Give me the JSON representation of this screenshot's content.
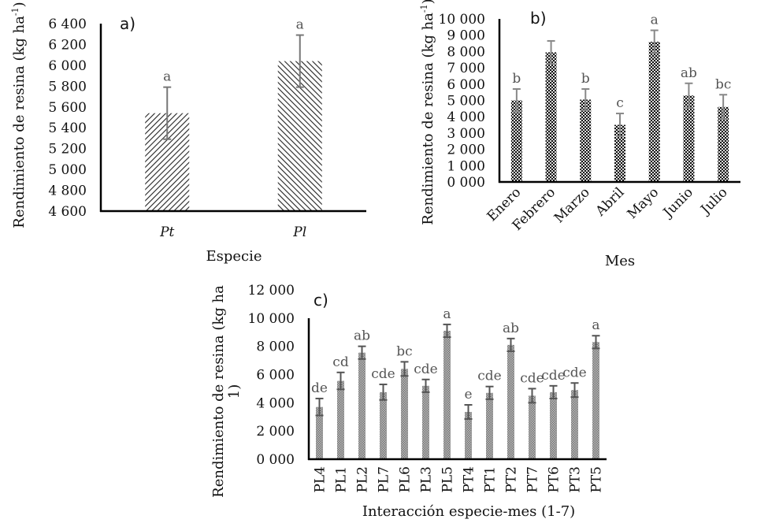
{
  "chart_data": [
    {
      "id": "a",
      "type": "bar",
      "panel_label": "a)",
      "title": "",
      "xlabel": "Especie",
      "ylabel": "Rendimiento de resina (kg ha",
      "ylabel_sup": "-1",
      "ylabel_close": ")",
      "ylim": [
        4600,
        6400
      ],
      "yticks": [
        4600,
        4800,
        5000,
        5200,
        5400,
        5600,
        5800,
        6000,
        6200,
        6400
      ],
      "ytick_labels": [
        "4 600",
        "4 800",
        "5 000",
        "5 200",
        "5 400",
        "5 600",
        "5 800",
        "6 000",
        "6 200",
        "6 400"
      ],
      "categories": [
        "Pt",
        "Pl"
      ],
      "values": [
        5540,
        6040
      ],
      "error": [
        250,
        250
      ],
      "significance": [
        "a",
        "a"
      ],
      "patterns": [
        "hatch-forward",
        "hatch-backward"
      ],
      "grid": false,
      "legend": "none"
    },
    {
      "id": "b",
      "type": "bar",
      "panel_label": "b)",
      "title": "",
      "xlabel": "Mes",
      "ylabel": "Rendimiento de resina (kg ha",
      "ylabel_sup": "-1",
      "ylabel_close": ")",
      "ylim": [
        0,
        10000
      ],
      "yticks": [
        0,
        1000,
        2000,
        3000,
        4000,
        5000,
        6000,
        7000,
        8000,
        9000,
        10000
      ],
      "ytick_labels": [
        "0 000",
        "1 000",
        "2 000",
        "3 000",
        "4 000",
        "5 000",
        "6 000",
        "7 000",
        "8 000",
        "9 000",
        "10 000"
      ],
      "categories": [
        "Enero",
        "Febrero",
        "Marzo",
        "Abril",
        "Mayo",
        "Junio",
        "Julio"
      ],
      "values": [
        5000,
        7950,
        5050,
        3500,
        8600,
        5300,
        4600
      ],
      "error": [
        700,
        700,
        650,
        700,
        700,
        750,
        750
      ],
      "significance": [
        "b",
        "",
        "b",
        "c",
        "a",
        "ab",
        "bc"
      ],
      "grid": false,
      "legend": "none"
    },
    {
      "id": "c",
      "type": "bar",
      "panel_label": "c)",
      "title": "",
      "xlabel": "Interacción especie-mes (1-7)",
      "ylabel_line1": "Rendimiento de resina (kg ha",
      "ylabel_line2": "1)",
      "ylim": [
        0,
        12000
      ],
      "yticks": [
        0,
        2000,
        4000,
        6000,
        8000,
        10000,
        12000
      ],
      "ytick_labels": [
        "0 000",
        "2 000",
        "4 000",
        "6 000",
        "8 000",
        "10 000",
        "12 000"
      ],
      "categories": [
        "PL4",
        "PL1",
        "PL2",
        "PL7",
        "PL6",
        "PL3",
        "PL5",
        "PT4",
        "PT1",
        "PT2",
        "PT7",
        "PT6",
        "PT3",
        "PT5"
      ],
      "values": [
        3700,
        5550,
        7550,
        4750,
        6400,
        5200,
        9100,
        3350,
        4700,
        8100,
        4500,
        4750,
        4900,
        8300
      ],
      "error": [
        600,
        600,
        450,
        550,
        500,
        450,
        450,
        500,
        450,
        450,
        500,
        450,
        500,
        450
      ],
      "significance": [
        "de",
        "cd",
        "ab",
        "cde",
        "bc",
        "cde",
        "a",
        "e",
        "cde",
        "ab",
        "cde",
        "cde",
        "cde",
        "a"
      ],
      "grid": false,
      "legend": "none"
    }
  ]
}
